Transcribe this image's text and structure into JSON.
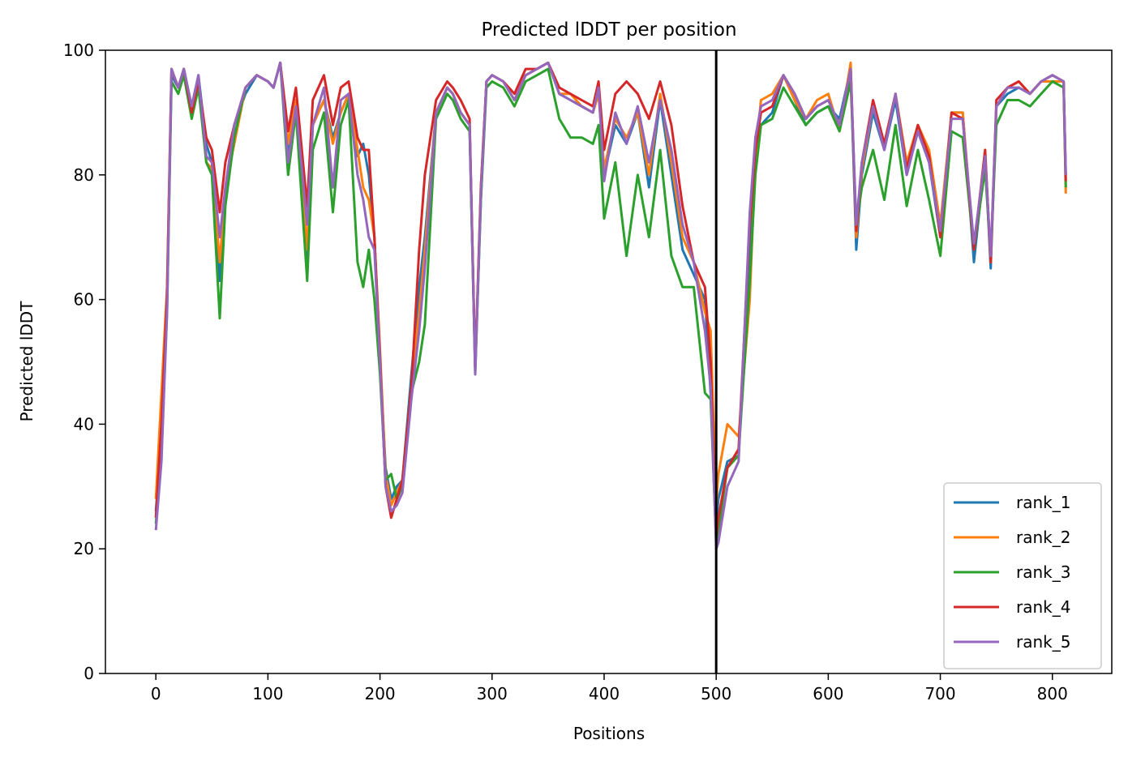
{
  "chart_data": {
    "type": "line",
    "title": "Predicted lDDT per position",
    "xlabel": "Positions",
    "ylabel": "Predicted lDDT",
    "xlim": [
      -45,
      853
    ],
    "ylim": [
      0,
      100
    ],
    "xticks": [
      0,
      100,
      200,
      300,
      400,
      500,
      600,
      700,
      800
    ],
    "yticks": [
      0,
      20,
      40,
      60,
      80,
      100
    ],
    "grid": false,
    "legend_position": "lower-right",
    "vline_x": 500,
    "series": [
      {
        "name": "rank_1",
        "color": "#1f77b4",
        "x": [
          0,
          5,
          10,
          14,
          20,
          25,
          32,
          38,
          45,
          50,
          57,
          62,
          70,
          80,
          90,
          100,
          105,
          111,
          118,
          125,
          135,
          140,
          150,
          158,
          165,
          172,
          180,
          185,
          190,
          195,
          200,
          205,
          210,
          215,
          220,
          228,
          235,
          240,
          250,
          260,
          265,
          272,
          280,
          285,
          290,
          295,
          300,
          310,
          320,
          330,
          340,
          350,
          360,
          370,
          380,
          390,
          395,
          400,
          410,
          420,
          430,
          440,
          450,
          460,
          470,
          480,
          490,
          495,
          500,
          502,
          510,
          520,
          530,
          535,
          540,
          550,
          560,
          570,
          580,
          590,
          600,
          610,
          620,
          625,
          630,
          640,
          650,
          660,
          670,
          680,
          690,
          700,
          710,
          720,
          730,
          740,
          745,
          750,
          760,
          770,
          780,
          790,
          800,
          810,
          812
        ],
        "y": [
          26,
          38,
          60,
          96,
          94,
          97,
          91,
          96,
          85,
          82,
          63,
          76,
          88,
          93,
          96,
          95,
          94,
          98,
          84,
          92,
          65,
          88,
          92,
          86,
          90,
          93,
          83,
          85,
          80,
          70,
          50,
          33,
          28,
          30,
          31,
          48,
          62,
          70,
          90,
          94,
          93,
          90,
          88,
          49,
          76,
          95,
          96,
          95,
          92,
          96,
          97,
          98,
          93,
          92,
          91,
          90,
          94,
          80,
          88,
          85,
          90,
          78,
          92,
          80,
          68,
          64,
          60,
          45,
          24,
          28,
          34,
          35,
          70,
          85,
          88,
          90,
          96,
          92,
          88,
          90,
          91,
          89,
          97,
          68,
          80,
          90,
          84,
          92,
          80,
          87,
          82,
          70,
          90,
          90,
          66,
          83,
          65,
          91,
          93,
          94,
          93,
          95,
          96,
          95,
          80
        ]
      },
      {
        "name": "rank_2",
        "color": "#ff7f0e",
        "x": [
          0,
          5,
          10,
          14,
          20,
          25,
          32,
          38,
          45,
          50,
          57,
          62,
          70,
          80,
          90,
          100,
          105,
          111,
          118,
          125,
          135,
          140,
          150,
          158,
          165,
          172,
          180,
          185,
          190,
          195,
          200,
          205,
          210,
          215,
          220,
          228,
          235,
          240,
          250,
          260,
          265,
          272,
          280,
          285,
          290,
          295,
          300,
          310,
          320,
          330,
          340,
          350,
          360,
          370,
          380,
          390,
          395,
          400,
          410,
          420,
          430,
          440,
          450,
          460,
          470,
          480,
          490,
          495,
          500,
          502,
          510,
          520,
          530,
          535,
          540,
          550,
          560,
          570,
          580,
          590,
          600,
          610,
          620,
          625,
          630,
          640,
          650,
          660,
          670,
          680,
          690,
          700,
          710,
          720,
          730,
          740,
          745,
          750,
          760,
          770,
          780,
          790,
          800,
          810,
          812
        ],
        "y": [
          28,
          45,
          62,
          97,
          94,
          97,
          91,
          95,
          82,
          81,
          66,
          78,
          85,
          94,
          96,
          95,
          94,
          98,
          85,
          92,
          68,
          88,
          92,
          85,
          90,
          93,
          84,
          78,
          76,
          70,
          52,
          32,
          27,
          29,
          31,
          46,
          58,
          68,
          90,
          94,
          93,
          90,
          88,
          49,
          78,
          95,
          96,
          95,
          92,
          96,
          97,
          98,
          93,
          93,
          91,
          90,
          93,
          81,
          89,
          86,
          90,
          80,
          93,
          82,
          70,
          66,
          58,
          55,
          27,
          32,
          40,
          38,
          60,
          83,
          92,
          93,
          96,
          92,
          89,
          92,
          93,
          87,
          98,
          70,
          81,
          91,
          85,
          93,
          82,
          88,
          84,
          72,
          90,
          90,
          68,
          84,
          66,
          91,
          94,
          95,
          93,
          95,
          95,
          95,
          77
        ]
      },
      {
        "name": "rank_3",
        "color": "#2ca02c",
        "x": [
          0,
          5,
          10,
          14,
          20,
          25,
          32,
          38,
          45,
          50,
          57,
          62,
          70,
          80,
          90,
          100,
          105,
          111,
          118,
          125,
          135,
          140,
          150,
          158,
          165,
          172,
          180,
          185,
          190,
          195,
          200,
          205,
          210,
          215,
          220,
          228,
          235,
          240,
          250,
          260,
          265,
          272,
          280,
          285,
          290,
          295,
          300,
          310,
          320,
          330,
          340,
          350,
          360,
          370,
          380,
          390,
          395,
          400,
          410,
          420,
          430,
          440,
          450,
          460,
          470,
          480,
          490,
          495,
          500,
          502,
          510,
          520,
          530,
          535,
          540,
          550,
          560,
          570,
          580,
          590,
          600,
          610,
          620,
          625,
          630,
          640,
          650,
          660,
          670,
          680,
          690,
          700,
          710,
          720,
          730,
          740,
          745,
          750,
          760,
          770,
          780,
          790,
          800,
          810,
          812
        ],
        "y": [
          24,
          36,
          58,
          95,
          93,
          96,
          89,
          94,
          82,
          80,
          57,
          75,
          86,
          94,
          96,
          95,
          94,
          98,
          80,
          90,
          63,
          84,
          90,
          74,
          88,
          92,
          66,
          62,
          68,
          60,
          48,
          31,
          32,
          28,
          30,
          45,
          50,
          56,
          89,
          93,
          92,
          89,
          87,
          48,
          76,
          94,
          95,
          94,
          91,
          95,
          96,
          97,
          89,
          86,
          86,
          85,
          88,
          73,
          82,
          67,
          80,
          70,
          84,
          67,
          62,
          62,
          45,
          44,
          21,
          23,
          33,
          35,
          63,
          80,
          88,
          89,
          94,
          91,
          88,
          90,
          91,
          87,
          95,
          72,
          78,
          84,
          76,
          88,
          75,
          84,
          76,
          67,
          87,
          86,
          68,
          81,
          67,
          88,
          92,
          92,
          91,
          93,
          95,
          94,
          78
        ]
      },
      {
        "name": "rank_4",
        "color": "#d62728",
        "x": [
          0,
          5,
          10,
          14,
          20,
          25,
          32,
          38,
          45,
          50,
          57,
          62,
          70,
          80,
          90,
          100,
          105,
          111,
          118,
          125,
          135,
          140,
          150,
          158,
          165,
          172,
          180,
          185,
          190,
          195,
          200,
          205,
          210,
          215,
          220,
          228,
          235,
          240,
          250,
          260,
          265,
          272,
          280,
          285,
          290,
          295,
          300,
          310,
          320,
          330,
          340,
          350,
          360,
          370,
          380,
          390,
          395,
          400,
          410,
          420,
          430,
          440,
          450,
          460,
          470,
          480,
          490,
          495,
          500,
          502,
          510,
          520,
          530,
          535,
          540,
          550,
          560,
          570,
          580,
          590,
          600,
          610,
          620,
          625,
          630,
          640,
          650,
          660,
          670,
          680,
          690,
          700,
          710,
          720,
          730,
          740,
          745,
          750,
          760,
          770,
          780,
          790,
          800,
          810,
          812
        ],
        "y": [
          25,
          40,
          61,
          97,
          94,
          97,
          90,
          95,
          86,
          84,
          74,
          82,
          88,
          94,
          96,
          95,
          94,
          98,
          87,
          94,
          75,
          92,
          96,
          88,
          94,
          95,
          86,
          84,
          84,
          70,
          51,
          30,
          25,
          28,
          31,
          46,
          68,
          80,
          92,
          95,
          94,
          92,
          89,
          49,
          78,
          95,
          96,
          95,
          93,
          97,
          97,
          98,
          94,
          93,
          92,
          91,
          95,
          84,
          93,
          95,
          93,
          89,
          95,
          88,
          75,
          66,
          62,
          50,
          22,
          25,
          33,
          36,
          72,
          84,
          90,
          91,
          96,
          93,
          89,
          91,
          92,
          88,
          97,
          71,
          82,
          92,
          85,
          93,
          81,
          88,
          83,
          70,
          90,
          89,
          68,
          84,
          66,
          92,
          94,
          95,
          93,
          95,
          96,
          95,
          79
        ]
      },
      {
        "name": "rank_5",
        "color": "#9467bd",
        "x": [
          0,
          5,
          10,
          14,
          20,
          25,
          32,
          38,
          45,
          50,
          57,
          62,
          70,
          80,
          90,
          100,
          105,
          111,
          118,
          125,
          135,
          140,
          150,
          158,
          165,
          172,
          180,
          185,
          190,
          195,
          200,
          205,
          210,
          215,
          220,
          228,
          235,
          240,
          250,
          260,
          265,
          272,
          280,
          285,
          290,
          295,
          300,
          310,
          320,
          330,
          340,
          350,
          360,
          370,
          380,
          390,
          395,
          400,
          410,
          420,
          430,
          440,
          450,
          460,
          470,
          480,
          490,
          495,
          500,
          502,
          510,
          520,
          530,
          535,
          540,
          550,
          560,
          570,
          580,
          590,
          600,
          610,
          620,
          625,
          630,
          640,
          650,
          660,
          670,
          680,
          690,
          700,
          710,
          720,
          730,
          740,
          745,
          750,
          760,
          770,
          780,
          790,
          800,
          810,
          812
        ],
        "y": [
          23,
          34,
          58,
          97,
          94,
          97,
          91,
          96,
          83,
          82,
          70,
          78,
          88,
          94,
          96,
          95,
          94,
          98,
          82,
          91,
          72,
          88,
          94,
          78,
          92,
          93,
          80,
          76,
          70,
          68,
          50,
          30,
          26,
          27,
          29,
          44,
          55,
          65,
          90,
          94,
          93,
          90,
          88,
          48,
          77,
          95,
          96,
          95,
          92,
          96,
          97,
          98,
          93,
          92,
          91,
          90,
          94,
          79,
          90,
          85,
          91,
          82,
          92,
          84,
          72,
          66,
          55,
          46,
          20,
          21,
          30,
          34,
          74,
          86,
          91,
          92,
          96,
          93,
          89,
          91,
          92,
          88,
          97,
          72,
          82,
          91,
          84,
          93,
          80,
          87,
          82,
          71,
          89,
          89,
          69,
          83,
          67,
          91,
          94,
          94,
          93,
          95,
          96,
          95,
          80
        ]
      }
    ]
  }
}
